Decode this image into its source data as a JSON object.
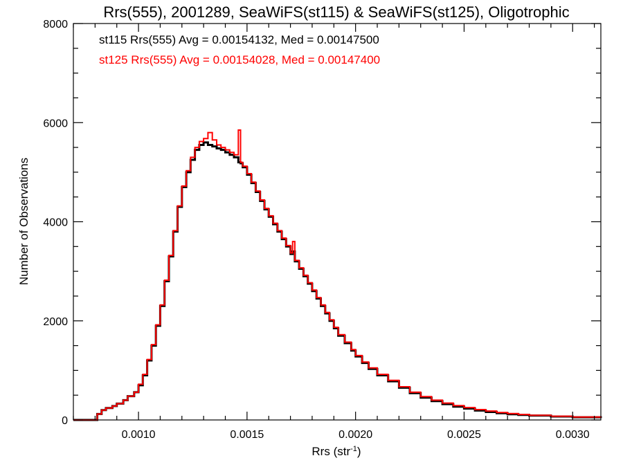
{
  "chart_data": {
    "type": "line",
    "title": "Rrs(555), 2001289, SeaWiFS(st115) & SeaWiFS(st125), Oligotrophic",
    "xlabel": "Rrs (str",
    "xlabel_sup": "-1",
    "xlabel_close": ")",
    "ylabel": "Number of Observations",
    "xlim": [
      0.0007,
      0.00313
    ],
    "ylim": [
      0,
      8000
    ],
    "xticks": [
      0.001,
      0.0015,
      0.002,
      0.0025,
      0.003
    ],
    "xtick_labels": [
      "0.0010",
      "0.0015",
      "0.0020",
      "0.0025",
      "0.0030"
    ],
    "yticks": [
      0,
      2000,
      4000,
      6000,
      8000
    ],
    "ytick_labels": [
      "0",
      "2000",
      "4000",
      "6000",
      "8000"
    ],
    "grid": false,
    "legend_position": "top-left",
    "x": [
      0.0007,
      0.00075,
      0.0008,
      0.00081,
      0.00083,
      0.00085,
      0.00088,
      0.0009,
      0.00093,
      0.00095,
      0.00098,
      0.001,
      0.00102,
      0.00104,
      0.00106,
      0.00108,
      0.0011,
      0.00112,
      0.00114,
      0.00116,
      0.00118,
      0.0012,
      0.00122,
      0.00124,
      0.00126,
      0.00128,
      0.0013,
      0.00132,
      0.00134,
      0.00136,
      0.00138,
      0.0014,
      0.00142,
      0.00144,
      0.00146,
      0.00147,
      0.00148,
      0.0015,
      0.00152,
      0.00154,
      0.00156,
      0.00158,
      0.0016,
      0.00162,
      0.00164,
      0.00166,
      0.00168,
      0.0017,
      0.00171,
      0.00172,
      0.00174,
      0.00176,
      0.00178,
      0.0018,
      0.00182,
      0.00184,
      0.00186,
      0.00188,
      0.0019,
      0.00192,
      0.00195,
      0.00198,
      0.002,
      0.00203,
      0.00206,
      0.0021,
      0.00215,
      0.0022,
      0.00225,
      0.0023,
      0.00235,
      0.0024,
      0.00245,
      0.0025,
      0.00255,
      0.0026,
      0.00265,
      0.0027,
      0.00275,
      0.0028,
      0.0029,
      0.003,
      0.00313
    ],
    "series": [
      {
        "name": "st115 Rrs(555) Avg = 0.00154132, Med = 0.00147500",
        "color": "#000000",
        "values": [
          0,
          0,
          0,
          120,
          200,
          240,
          280,
          330,
          400,
          480,
          560,
          700,
          900,
          1200,
          1500,
          1900,
          2300,
          2800,
          3300,
          3800,
          4300,
          4700,
          5000,
          5250,
          5450,
          5550,
          5600,
          5550,
          5520,
          5480,
          5450,
          5400,
          5350,
          5300,
          5200,
          5180,
          5100,
          4950,
          4780,
          4600,
          4420,
          4250,
          4100,
          3950,
          3800,
          3650,
          3500,
          3350,
          3400,
          3200,
          3050,
          2900,
          2750,
          2600,
          2450,
          2300,
          2150,
          2000,
          1850,
          1700,
          1550,
          1400,
          1280,
          1150,
          1030,
          900,
          780,
          650,
          540,
          450,
          380,
          320,
          270,
          230,
          190,
          160,
          135,
          115,
          100,
          90,
          70,
          55,
          40
        ]
      },
      {
        "name": "st125 Rrs(555) Avg = 0.00154028, Med = 0.00147400",
        "color": "#ff0000",
        "values": [
          0,
          0,
          0,
          120,
          200,
          240,
          280,
          330,
          400,
          480,
          560,
          720,
          920,
          1220,
          1520,
          1920,
          2320,
          2820,
          3320,
          3820,
          4320,
          4720,
          5030,
          5300,
          5500,
          5620,
          5680,
          5800,
          5650,
          5550,
          5500,
          5450,
          5400,
          5350,
          5850,
          5200,
          5120,
          4970,
          4800,
          4620,
          4440,
          4270,
          4120,
          3970,
          3820,
          3670,
          3520,
          3370,
          3600,
          3220,
          3070,
          2920,
          2770,
          2620,
          2470,
          2320,
          2170,
          2020,
          1870,
          1720,
          1570,
          1420,
          1300,
          1170,
          1050,
          920,
          800,
          670,
          560,
          470,
          400,
          340,
          290,
          250,
          210,
          180,
          150,
          130,
          110,
          95,
          75,
          60,
          45
        ]
      }
    ]
  }
}
